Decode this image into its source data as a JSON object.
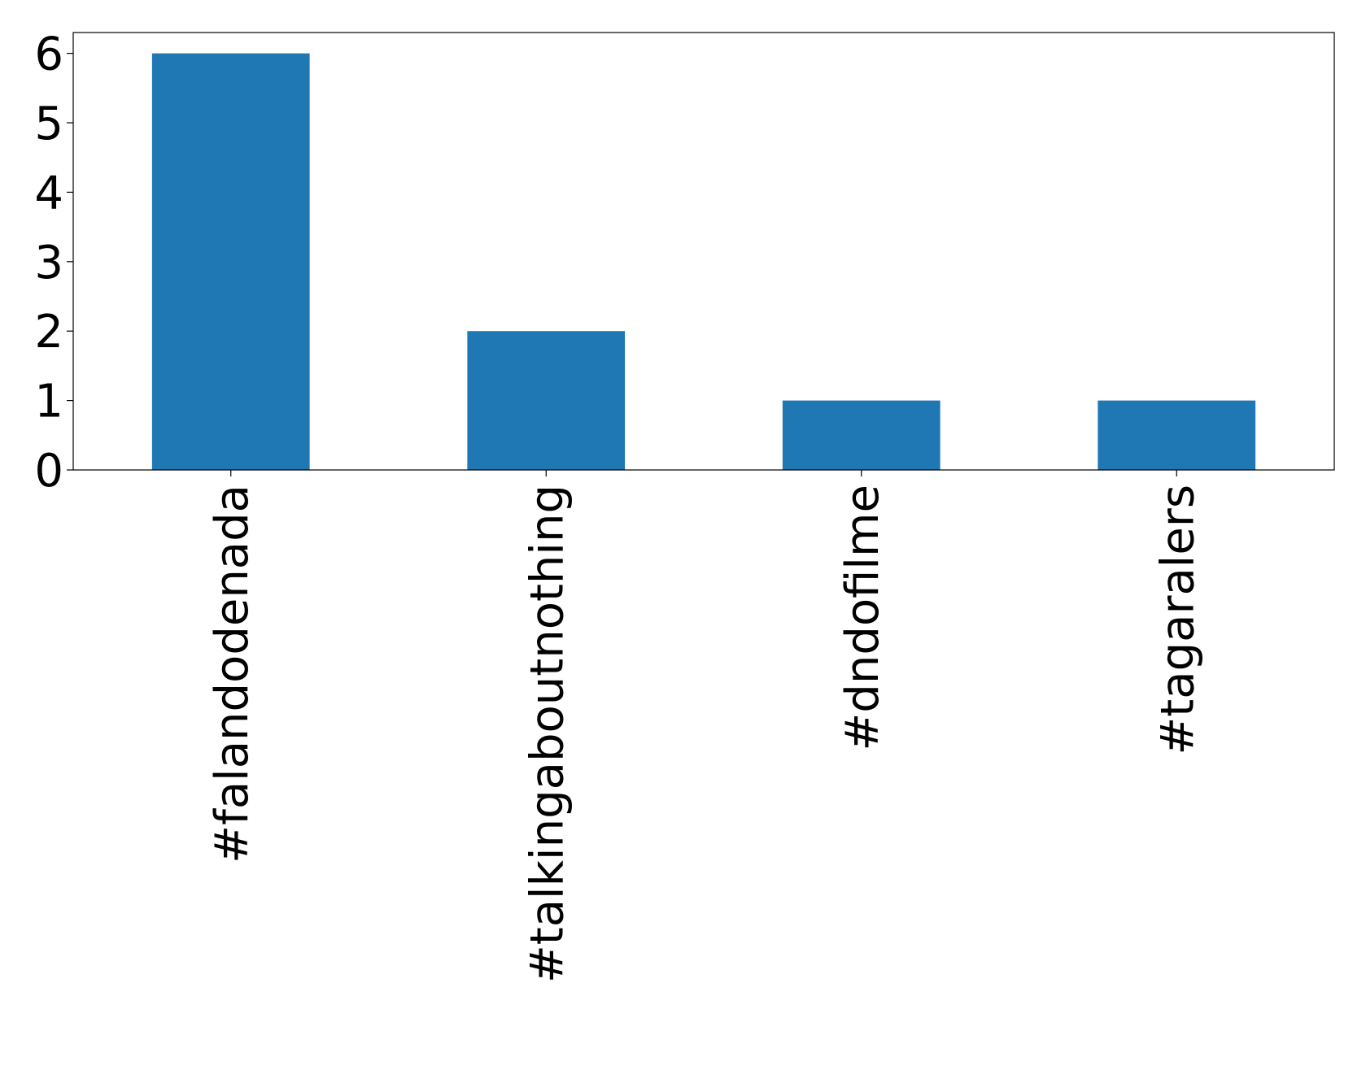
{
  "chart_data": {
    "type": "bar",
    "categories": [
      "#falandodenada",
      "#talkingaboutnothing",
      "#dndofilme",
      "#tagaralers"
    ],
    "values": [
      6,
      2,
      1,
      1
    ],
    "color": "#1f77b4",
    "ylim": [
      0,
      6.3
    ],
    "yticks": [
      0,
      1,
      2,
      3,
      4,
      5,
      6
    ],
    "grid": false
  }
}
